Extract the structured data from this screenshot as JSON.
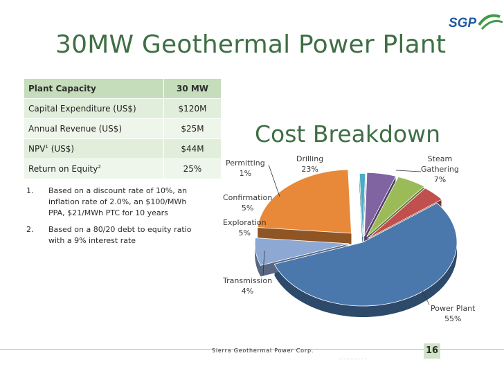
{
  "title": "30MW Geothermal Power Plant",
  "logo": {
    "text": "SGP",
    "colors": {
      "green": "#3f9a46",
      "blue": "#1f5aa3"
    }
  },
  "metrics": {
    "header": {
      "label": "Plant Capacity",
      "value": "30 MW"
    },
    "rows": [
      {
        "label": "Capital Expenditure (US$)",
        "value": "$120M"
      },
      {
        "label": "Annual Revenue (US$)",
        "value": "$25M"
      },
      {
        "label_prefix": "NPV",
        "sup": "1",
        "label_suffix": " (US$)",
        "value": "$44M"
      },
      {
        "label_prefix": "Return on Equity",
        "sup": "2",
        "label_suffix": "",
        "value": "25%"
      }
    ]
  },
  "footnotes": [
    {
      "num": "1.",
      "text": "Based on a discount rate of 10%, an inflation rate of 2.0%, an $100/MWh PPA, $21/MWh PTC for 10 years"
    },
    {
      "num": "2.",
      "text": "Based on a 80/20 debt to equity ratio with a 9% interest rate"
    }
  ],
  "chart_data": {
    "type": "pie",
    "title": "Cost Breakdown",
    "slices": [
      {
        "label": "Power Plant",
        "value": 55,
        "pct": "55%",
        "color": "#4a78ad"
      },
      {
        "label": "Transmission",
        "value": 4,
        "pct": "4%",
        "color": "#c0504d"
      },
      {
        "label": "Exploration",
        "value": 5,
        "pct": "5%",
        "color": "#9bbb59"
      },
      {
        "label": "Confirmation",
        "value": 5,
        "pct": "5%",
        "color": "#8064a2"
      },
      {
        "label": "Permitting",
        "value": 1,
        "pct": "1%",
        "color": "#4bacc6"
      },
      {
        "label": "Drilling",
        "value": 23,
        "pct": "23%",
        "color": "#e8893a"
      },
      {
        "label": "Steam Gathering",
        "value": 7,
        "pct": "7%",
        "color": "#8ea8d4"
      }
    ]
  },
  "footer": {
    "company": "Sierra Geothermal Power Corp.",
    "page": "16"
  }
}
